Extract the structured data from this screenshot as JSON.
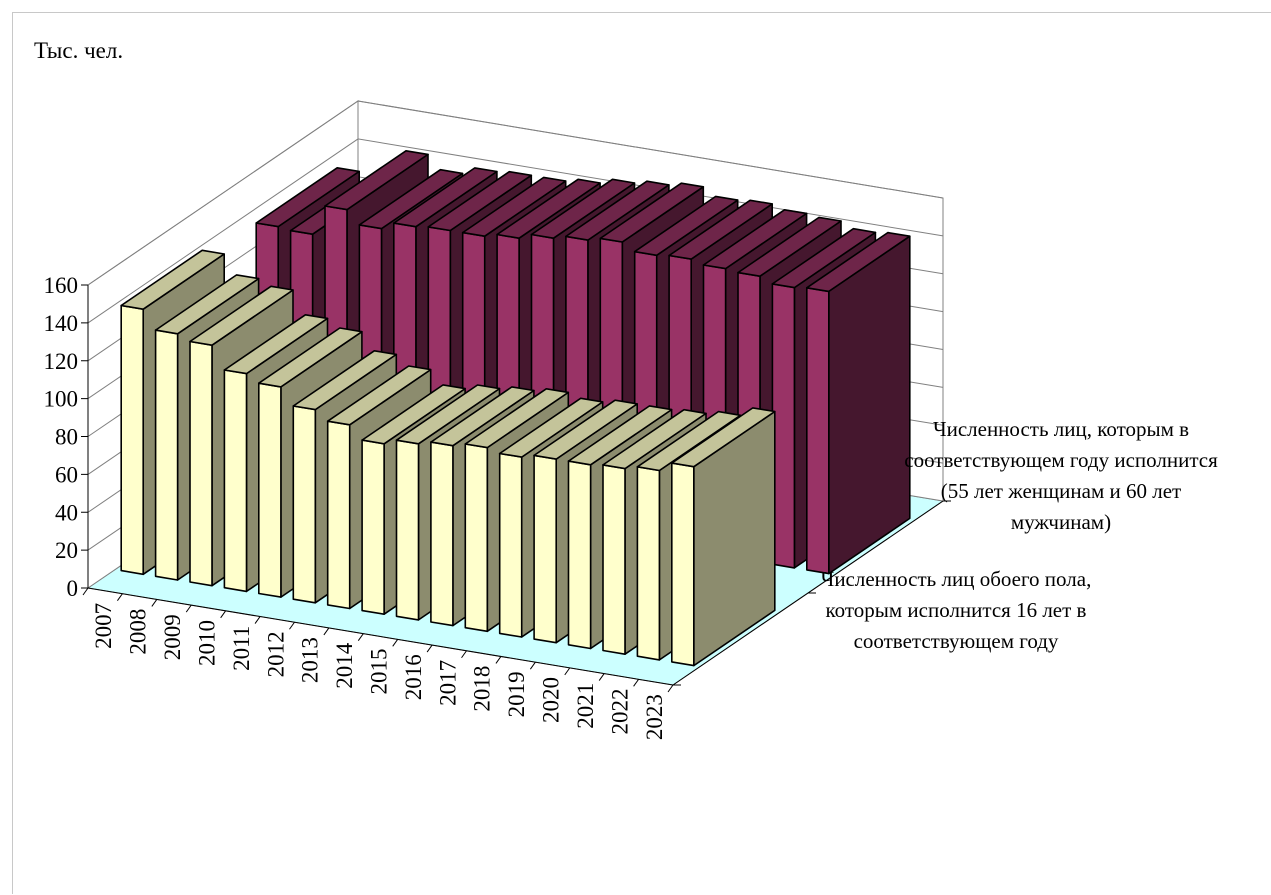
{
  "chart_data": {
    "type": "bar",
    "title": "",
    "ylabel": "Тыс. чел.",
    "xlabel": "",
    "ylim": [
      0,
      160
    ],
    "yticks": [
      0,
      20,
      40,
      60,
      80,
      100,
      120,
      140,
      160
    ],
    "categories": [
      "2007",
      "2008",
      "2009",
      "2010",
      "2011",
      "2012",
      "2013",
      "2014",
      "2015",
      "2016",
      "2017",
      "2018",
      "2019",
      "2020",
      "2021",
      "2022",
      "2023"
    ],
    "series": [
      {
        "name": "Численность лиц обоего пола, которым исполнится 16 лет в соответствующем  году",
        "label_lines": [
          "Численность лиц обоего пола,",
          "которым исполнится 16 лет в",
          "соответствующем  году"
        ],
        "color": "#ffffcc",
        "values": [
          140,
          130,
          127,
          115,
          111,
          102,
          97,
          90,
          93,
          95,
          97,
          95,
          97,
          97,
          98,
          100,
          105
        ]
      },
      {
        "name": "Численность лиц, которым в соответствующем  году исполнится (55 лет женщинам и 60 лет мужчинам)",
        "label_lines": [
          "Численность лиц, которым в",
          "соответствующем  году исполнится",
          "(55 лет женщинам и 60 лет",
          "мужчинам)"
        ],
        "color": "#993366",
        "values": [
          135,
          134,
          150,
          143,
          147,
          148,
          148,
          150,
          153,
          155,
          157,
          153,
          154,
          152,
          151,
          148,
          149
        ]
      }
    ],
    "gridlines": true,
    "legend": "none"
  }
}
